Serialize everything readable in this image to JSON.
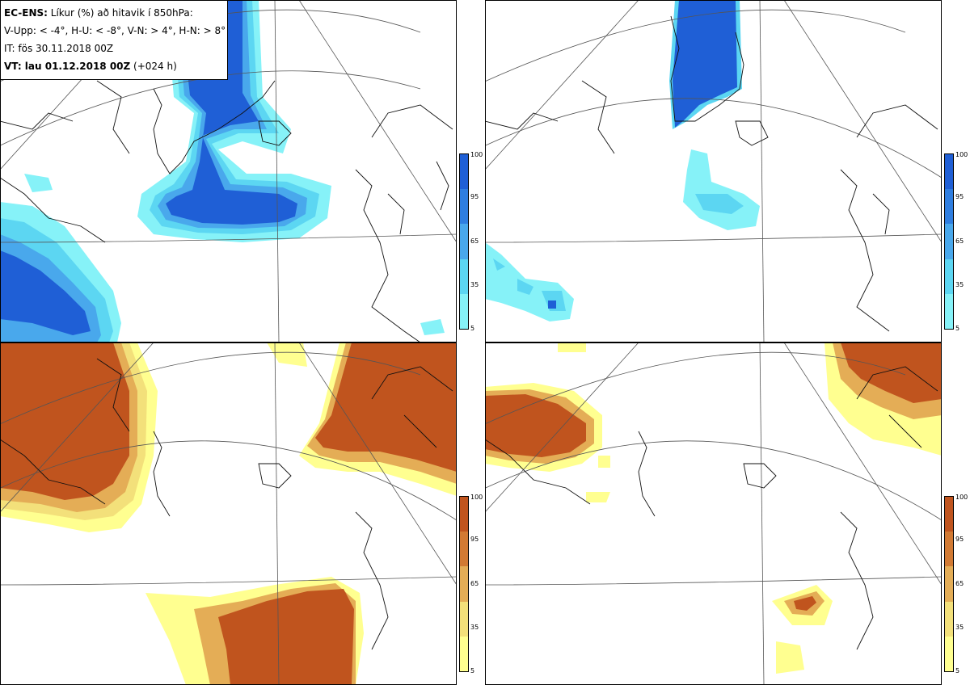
{
  "legend": {
    "line1_bold": "EC-ENS:",
    "line1_rest": " Líkur (%) að hitavik í 850hPa:",
    "line2": "V-Upp: < -4°, H-U: < -8°, V-N: > 4°, H-N: > 8°",
    "line3": "IT: fös 30.11.2018 00Z",
    "line4_bold": "VT: lau 01.12.2018 00Z",
    "line4_rest": " (+024 h)"
  },
  "colorbar": {
    "levels": [
      "100",
      "95",
      "65",
      "35",
      "5"
    ],
    "cold_colors": [
      "#1f5fd6",
      "#2f7ee0",
      "#49a8ec",
      "#5cd6f2",
      "#86f2f8"
    ],
    "warm_colors": [
      "#c0541e",
      "#d27a33",
      "#e4ad56",
      "#f3e07a",
      "#ffff90"
    ]
  },
  "panels": [
    "V-Upp",
    "H-U",
    "V-N",
    "H-N"
  ]
}
